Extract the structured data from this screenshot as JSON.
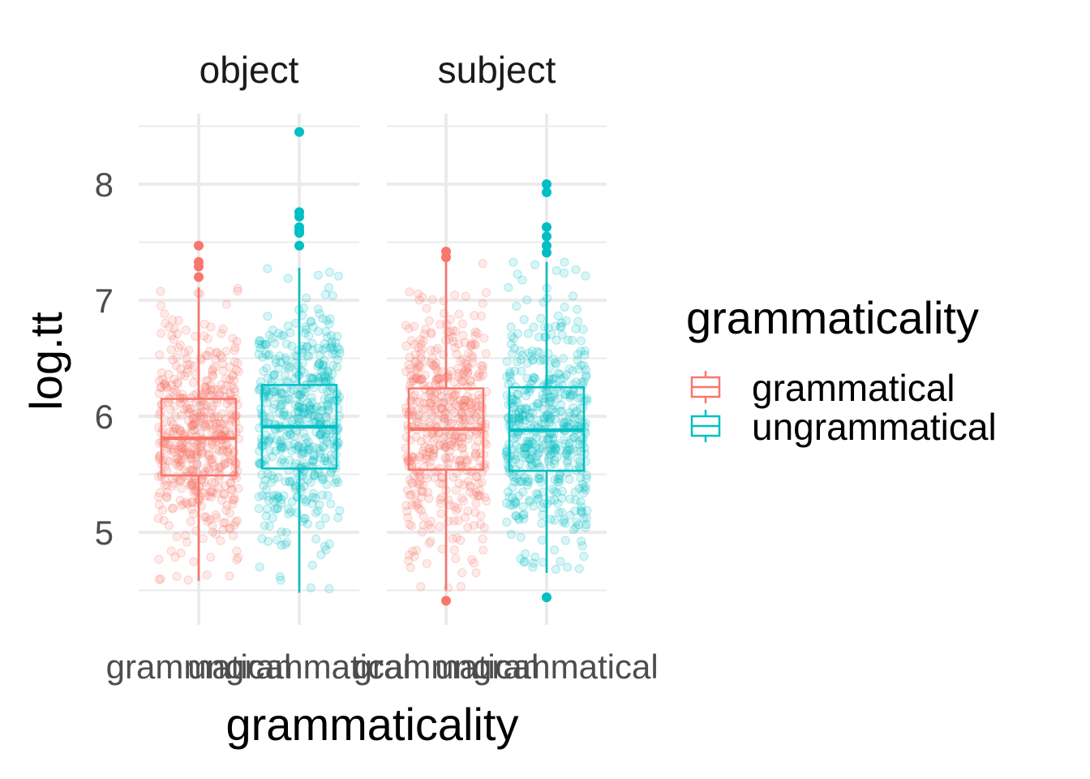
{
  "chart_data": {
    "type": "boxplot",
    "xlabel": "grammaticality",
    "ylabel": "log.tt",
    "ylim": [
      4.3,
      8.6
    ],
    "y_ticks": [
      5,
      6,
      7,
      8
    ],
    "grid": true,
    "legend": {
      "title": "grammaticality",
      "position": "right",
      "entries": [
        {
          "label": "grammatical",
          "color": "#F8766D"
        },
        {
          "label": "ungrammatical",
          "color": "#00BFC4"
        }
      ]
    },
    "facets": [
      {
        "label": "object",
        "categories": [
          "grammatical",
          "ungrammatical"
        ],
        "boxes": [
          {
            "category": "grammatical",
            "color": "#F8766D",
            "q1": 5.49,
            "median": 5.81,
            "q3": 6.15,
            "whisker_low": 4.58,
            "whisker_high": 7.11,
            "outliers": [
              7.47,
              7.33,
              7.29,
              7.2
            ]
          },
          {
            "category": "ungrammatical",
            "color": "#00BFC4",
            "q1": 5.55,
            "median": 5.91,
            "q3": 6.27,
            "whisker_low": 4.48,
            "whisker_high": 7.28,
            "outliers": [
              8.45,
              7.76,
              7.72,
              7.63,
              7.6,
              7.58,
              7.47
            ]
          }
        ]
      },
      {
        "label": "subject",
        "categories": [
          "grammatical",
          "ungrammatical"
        ],
        "boxes": [
          {
            "category": "grammatical",
            "color": "#F8766D",
            "q1": 5.54,
            "median": 5.89,
            "q3": 6.24,
            "whisker_low": 4.5,
            "whisker_high": 7.35,
            "outliers": [
              7.42,
              7.37,
              4.41
            ]
          },
          {
            "category": "ungrammatical",
            "color": "#00BFC4",
            "q1": 5.53,
            "median": 5.88,
            "q3": 6.25,
            "whisker_low": 4.65,
            "whisker_high": 7.33,
            "outliers": [
              8.0,
              7.93,
              7.63,
              7.55,
              7.47,
              7.41,
              4.44
            ]
          }
        ]
      }
    ]
  }
}
